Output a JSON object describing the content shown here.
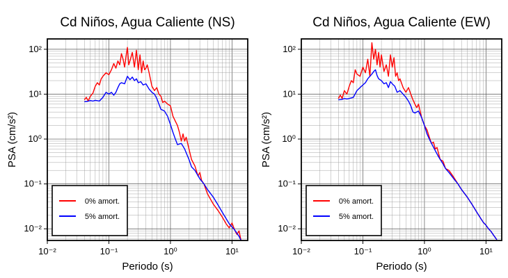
{
  "chart_data": [
    {
      "type": "line",
      "title": "Cd Niños, Agua Caliente (NS)",
      "xlabel": "Periodo (s)",
      "ylabel": "PSA (cm/s²)",
      "xscale": "log",
      "yscale": "log",
      "xlim": [
        0.01,
        18
      ],
      "ylim": [
        0.0055,
        170
      ],
      "grid": true,
      "legend_position": "bottom-left",
      "x_ticks": [
        "10⁻²",
        "10⁻¹",
        "10⁰",
        "10¹"
      ],
      "y_ticks": [
        "10⁻²",
        "10⁻¹",
        "10⁰",
        "10¹",
        "10²"
      ],
      "series": [
        {
          "name": "0% amort.",
          "color": "#ff0000",
          "x": [
            0.04,
            0.043,
            0.046,
            0.05,
            0.055,
            0.06,
            0.065,
            0.07,
            0.075,
            0.08,
            0.09,
            0.1,
            0.11,
            0.12,
            0.13,
            0.14,
            0.15,
            0.16,
            0.17,
            0.18,
            0.19,
            0.2,
            0.21,
            0.22,
            0.24,
            0.26,
            0.28,
            0.3,
            0.32,
            0.34,
            0.36,
            0.38,
            0.4,
            0.42,
            0.45,
            0.5,
            0.55,
            0.6,
            0.65,
            0.7,
            0.75,
            0.8,
            0.9,
            1.0,
            1.1,
            1.2,
            1.3,
            1.4,
            1.5,
            1.6,
            1.7,
            1.8,
            2.0,
            2.2,
            2.5,
            2.8,
            3.0,
            3.2,
            3.5,
            4.0,
            4.5,
            5.0,
            6.0,
            7.0,
            8.0,
            9.0,
            10.0,
            11.0,
            12.0,
            13.0,
            14.0
          ],
          "y": [
            7.5,
            8.5,
            7.0,
            9.0,
            10.5,
            15.0,
            18.0,
            16.0,
            22.0,
            25.0,
            30.0,
            27.0,
            35.0,
            48.0,
            38.0,
            55.0,
            45.0,
            80.0,
            60.0,
            40.0,
            70.0,
            110.0,
            45.0,
            55.0,
            85.0,
            40.0,
            95.0,
            35.0,
            75.0,
            30.0,
            55.0,
            35.0,
            38.0,
            45.0,
            30.0,
            15.0,
            12.0,
            14.0,
            10.0,
            9.0,
            6.5,
            7.0,
            6.0,
            5.5,
            3.2,
            2.5,
            2.0,
            1.4,
            0.9,
            1.3,
            0.9,
            1.1,
            0.6,
            0.35,
            0.25,
            0.15,
            0.18,
            0.12,
            0.1,
            0.06,
            0.045,
            0.035,
            0.025,
            0.018,
            0.013,
            0.0105,
            0.0135,
            0.0095,
            0.0075,
            0.009,
            0.0055
          ]
        },
        {
          "name": "5% amort.",
          "color": "#0000ff",
          "x": [
            0.04,
            0.045,
            0.05,
            0.055,
            0.06,
            0.07,
            0.08,
            0.09,
            0.1,
            0.11,
            0.12,
            0.13,
            0.14,
            0.15,
            0.16,
            0.18,
            0.2,
            0.22,
            0.24,
            0.26,
            0.28,
            0.3,
            0.33,
            0.36,
            0.4,
            0.45,
            0.5,
            0.55,
            0.6,
            0.65,
            0.7,
            0.8,
            0.9,
            1.0,
            1.1,
            1.2,
            1.3,
            1.5,
            1.7,
            2.0,
            2.2,
            2.5,
            3.0,
            3.5,
            4.0,
            5.0,
            6.0,
            7.0,
            8.0,
            9.0,
            10.0,
            11.0,
            12.0,
            13.0,
            14.0
          ],
          "y": [
            6.8,
            6.9,
            7.2,
            7.0,
            7.3,
            7.0,
            8.5,
            11.0,
            10.0,
            11.0,
            9.5,
            11.0,
            14.0,
            17.0,
            18.0,
            17.0,
            25.0,
            21.0,
            24.0,
            20.0,
            22.0,
            18.0,
            19.0,
            16.0,
            17.0,
            13.0,
            11.0,
            10.0,
            8.0,
            6.0,
            4.6,
            4.2,
            3.2,
            2.1,
            1.4,
            1.0,
            0.75,
            0.8,
            0.6,
            0.35,
            0.24,
            0.2,
            0.13,
            0.1,
            0.075,
            0.05,
            0.033,
            0.023,
            0.017,
            0.013,
            0.011,
            0.0095,
            0.008,
            0.0068,
            0.0055
          ]
        }
      ]
    },
    {
      "type": "line",
      "title": "Cd Niños, Agua Caliente (EW)",
      "xlabel": "Periodo (s)",
      "ylabel": "PSA (cm/s²)",
      "xscale": "log",
      "yscale": "log",
      "xlim": [
        0.01,
        18
      ],
      "ylim": [
        0.0055,
        170
      ],
      "grid": true,
      "legend_position": "bottom-left",
      "x_ticks": [
        "10⁻²",
        "10⁻¹",
        "10⁰",
        "10¹"
      ],
      "y_ticks": [
        "10⁻²",
        "10⁻¹",
        "10⁰",
        "10¹",
        "10²"
      ],
      "series": [
        {
          "name": "0% amort.",
          "color": "#ff0000",
          "x": [
            0.04,
            0.043,
            0.046,
            0.05,
            0.055,
            0.06,
            0.065,
            0.07,
            0.075,
            0.08,
            0.09,
            0.1,
            0.11,
            0.12,
            0.13,
            0.14,
            0.15,
            0.16,
            0.17,
            0.18,
            0.19,
            0.2,
            0.22,
            0.24,
            0.26,
            0.28,
            0.3,
            0.32,
            0.34,
            0.36,
            0.38,
            0.4,
            0.45,
            0.5,
            0.55,
            0.6,
            0.65,
            0.7,
            0.75,
            0.8,
            0.9,
            1.0,
            1.1,
            1.2,
            1.3,
            1.4,
            1.5,
            1.6,
            1.8,
            2.0,
            2.2,
            2.5,
            3.0,
            3.5,
            4.0,
            5.0,
            6.0,
            7.0,
            8.0,
            9.0,
            10.0,
            11.0,
            12.0,
            13.0,
            14.0,
            15.0
          ],
          "y": [
            8.0,
            9.5,
            8.0,
            12.0,
            10.0,
            15.0,
            20.0,
            18.0,
            35.0,
            28.0,
            25.0,
            40.0,
            30.0,
            60.0,
            25.0,
            140.0,
            60.0,
            100.0,
            45.0,
            85.0,
            40.0,
            75.0,
            32.0,
            45.0,
            25.0,
            75.0,
            40.0,
            65.0,
            25.0,
            30.0,
            20.0,
            22.0,
            14.0,
            11.0,
            14.0,
            10.0,
            7.5,
            6.0,
            5.0,
            6.0,
            3.0,
            2.0,
            1.6,
            1.1,
            0.8,
            0.85,
            0.6,
            0.65,
            0.35,
            0.32,
            0.22,
            0.2,
            0.14,
            0.1,
            0.075,
            0.05,
            0.034,
            0.024,
            0.018,
            0.014,
            0.012,
            0.01,
            0.0088,
            0.0075,
            0.0065,
            0.0057
          ]
        },
        {
          "name": "5% amort.",
          "color": "#0000ff",
          "x": [
            0.04,
            0.045,
            0.05,
            0.055,
            0.06,
            0.07,
            0.08,
            0.09,
            0.1,
            0.11,
            0.12,
            0.13,
            0.14,
            0.15,
            0.16,
            0.17,
            0.18,
            0.2,
            0.22,
            0.24,
            0.26,
            0.28,
            0.3,
            0.33,
            0.36,
            0.4,
            0.45,
            0.5,
            0.55,
            0.6,
            0.65,
            0.7,
            0.8,
            0.9,
            1.0,
            1.1,
            1.2,
            1.3,
            1.5,
            1.7,
            2.0,
            2.2,
            2.5,
            3.0,
            3.5,
            4.0,
            5.0,
            6.0,
            7.0,
            8.0,
            9.0,
            10.0,
            11.0,
            12.0,
            13.0,
            14.0,
            15.0
          ],
          "y": [
            7.5,
            7.6,
            8.0,
            7.8,
            8.0,
            8.5,
            12.0,
            14.0,
            16.0,
            18.0,
            22.0,
            25.0,
            28.0,
            32.0,
            35.0,
            26.0,
            22.0,
            20.0,
            17.0,
            18.0,
            14.0,
            19.0,
            17.0,
            15.0,
            11.0,
            12.0,
            10.0,
            8.5,
            7.0,
            5.5,
            4.0,
            3.8,
            4.2,
            3.0,
            2.0,
            1.3,
            1.0,
            0.8,
            0.55,
            0.4,
            0.28,
            0.22,
            0.18,
            0.13,
            0.1,
            0.075,
            0.05,
            0.034,
            0.024,
            0.018,
            0.014,
            0.012,
            0.01,
            0.0088,
            0.0075,
            0.0065,
            0.0057
          ]
        }
      ]
    }
  ]
}
